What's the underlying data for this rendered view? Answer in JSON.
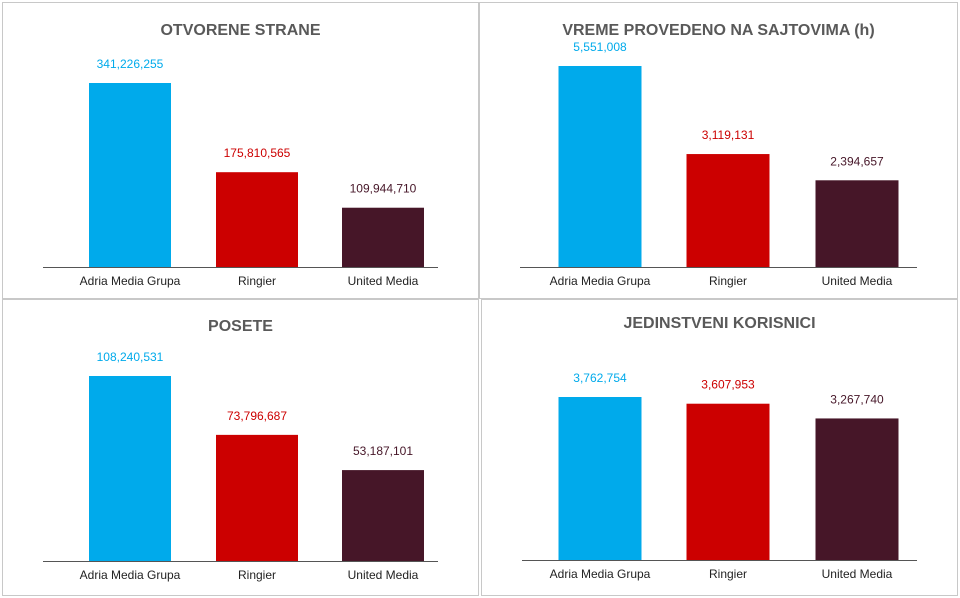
{
  "colors": {
    "Adria Media Grupa": "#00AAEB",
    "Ringier": "#CC0000",
    "United Media": "#461628",
    "value_label_Adria Media Grupa": "#00AAEB",
    "value_label_Ringier": "#CC0000",
    "value_label_United Media": "#461628",
    "axis": "#555555",
    "title": "#595959"
  },
  "chart_data": [
    {
      "type": "bar",
      "title": "OTVORENE STRANE",
      "categories": [
        "Adria Media Grupa",
        "Ringier",
        "United Media"
      ],
      "values": [
        341226255,
        175810565,
        109944710
      ],
      "value_labels": [
        "341,226,255",
        "175,810,565",
        "109,944,710"
      ],
      "ylim": [
        0,
        400000000
      ],
      "grid": false
    },
    {
      "type": "bar",
      "title": "VREME PROVEDENO NA SAJTOVIMA (h)",
      "categories": [
        "Adria Media Grupa",
        "Ringier",
        "United Media"
      ],
      "values": [
        5551008,
        3119131,
        2394657
      ],
      "value_labels": [
        "5,551,008",
        "3,119,131",
        "2,394,657"
      ],
      "ylim": [
        0,
        5600000
      ],
      "grid": false
    },
    {
      "type": "bar",
      "title": "POSETE",
      "categories": [
        "Adria Media Grupa",
        "Ringier",
        "United Media"
      ],
      "values": [
        108240531,
        73796687,
        53187101
      ],
      "value_labels": [
        "108,240,531",
        "73,796,687",
        "53,187,101"
      ],
      "ylim": [
        0,
        115000000
      ],
      "grid": false
    },
    {
      "type": "bar",
      "title": "JEDINSTVENI KORISNICI",
      "categories": [
        "Adria Media Grupa",
        "Ringier",
        "United Media"
      ],
      "values": [
        3762754,
        3607953,
        3267740
      ],
      "value_labels": [
        "3,762,754",
        "3,607,953",
        "3,267,740"
      ],
      "ylim": [
        0,
        4200000
      ],
      "grid": false
    }
  ]
}
